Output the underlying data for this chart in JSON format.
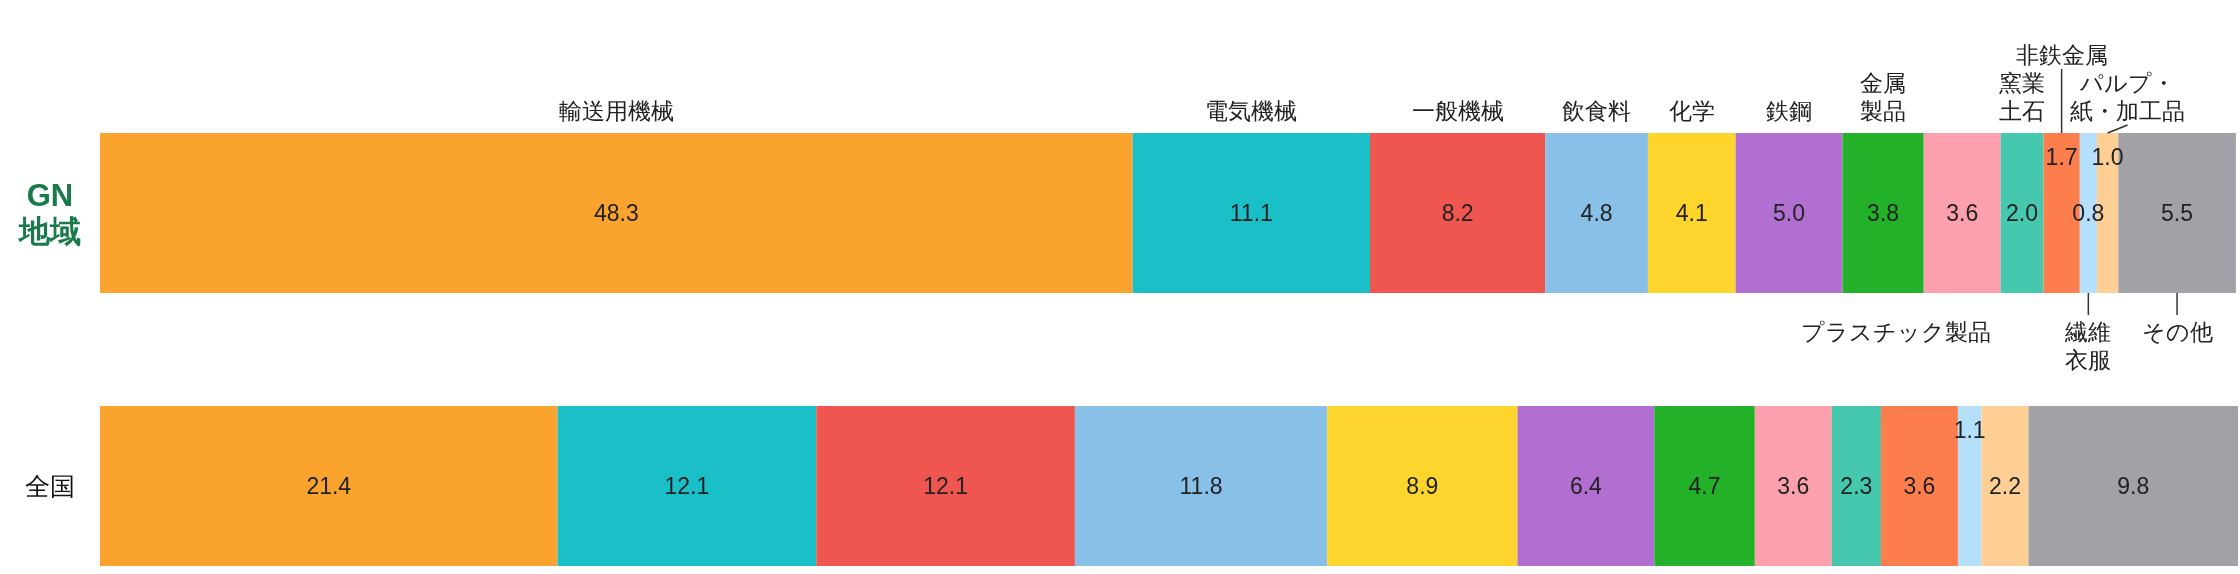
{
  "chart_data": {
    "type": "bar",
    "stacked": true,
    "orientation": "horizontal",
    "categories": [
      "GN地域",
      "全国"
    ],
    "series": [
      {
        "name": "輸送用機械",
        "color": "#fba32f",
        "values": [
          48.3,
          21.4
        ],
        "value_labels": [
          "48.3",
          "21.4"
        ]
      },
      {
        "name": "電気機械",
        "color": "#1bbfc8",
        "values": [
          11.1,
          12.1
        ],
        "value_labels": [
          "11.1",
          "12.1"
        ]
      },
      {
        "name": "一般機械",
        "color": "#ef5650",
        "values": [
          8.2,
          12.1
        ],
        "value_labels": [
          "8.2",
          "12.1"
        ]
      },
      {
        "name": "飲食料",
        "color": "#88c0e8",
        "values": [
          4.8,
          11.8
        ],
        "value_labels": [
          "4.8",
          "11.8"
        ]
      },
      {
        "name": "化学",
        "color": "#fdd52c",
        "values": [
          4.1,
          8.9
        ],
        "value_labels": [
          "4.1",
          "8.9"
        ]
      },
      {
        "name": "鉄鋼",
        "color": "#b26fd2",
        "values": [
          5.0,
          6.4
        ],
        "value_labels": [
          "5.0",
          "6.4"
        ]
      },
      {
        "name": "金属製品",
        "color": "#22b128",
        "values": [
          3.8,
          4.7
        ],
        "value_labels": [
          "3.8",
          "4.7"
        ]
      },
      {
        "name": "プラスチック製品",
        "color": "#fca0ae",
        "values": [
          3.6,
          3.6
        ],
        "value_labels": [
          "3.6",
          "3.6"
        ]
      },
      {
        "name": "窯業土石",
        "color": "#45c8ad",
        "values": [
          2.0,
          2.3
        ],
        "value_labels": [
          "2.0",
          "2.3"
        ]
      },
      {
        "name": "非鉄金属",
        "color": "#fd7e4d",
        "values": [
          1.7,
          3.6
        ],
        "value_labels": [
          "1.7",
          "3.6"
        ]
      },
      {
        "name": "繊維衣服",
        "color": "#b5e0fb",
        "values": [
          0.8,
          1.1
        ],
        "value_labels": [
          "0.8",
          "1.1"
        ]
      },
      {
        "name": "パルプ・紙・加工品",
        "color": "#fdcf95",
        "values": [
          1.0,
          2.2
        ],
        "value_labels": [
          "1.0",
          "2.2"
        ]
      },
      {
        "name": "その他",
        "color": "#a2a1a8",
        "values": [
          5.5,
          9.8
        ],
        "value_labels": [
          "5.5",
          "9.8"
        ]
      }
    ]
  }
}
